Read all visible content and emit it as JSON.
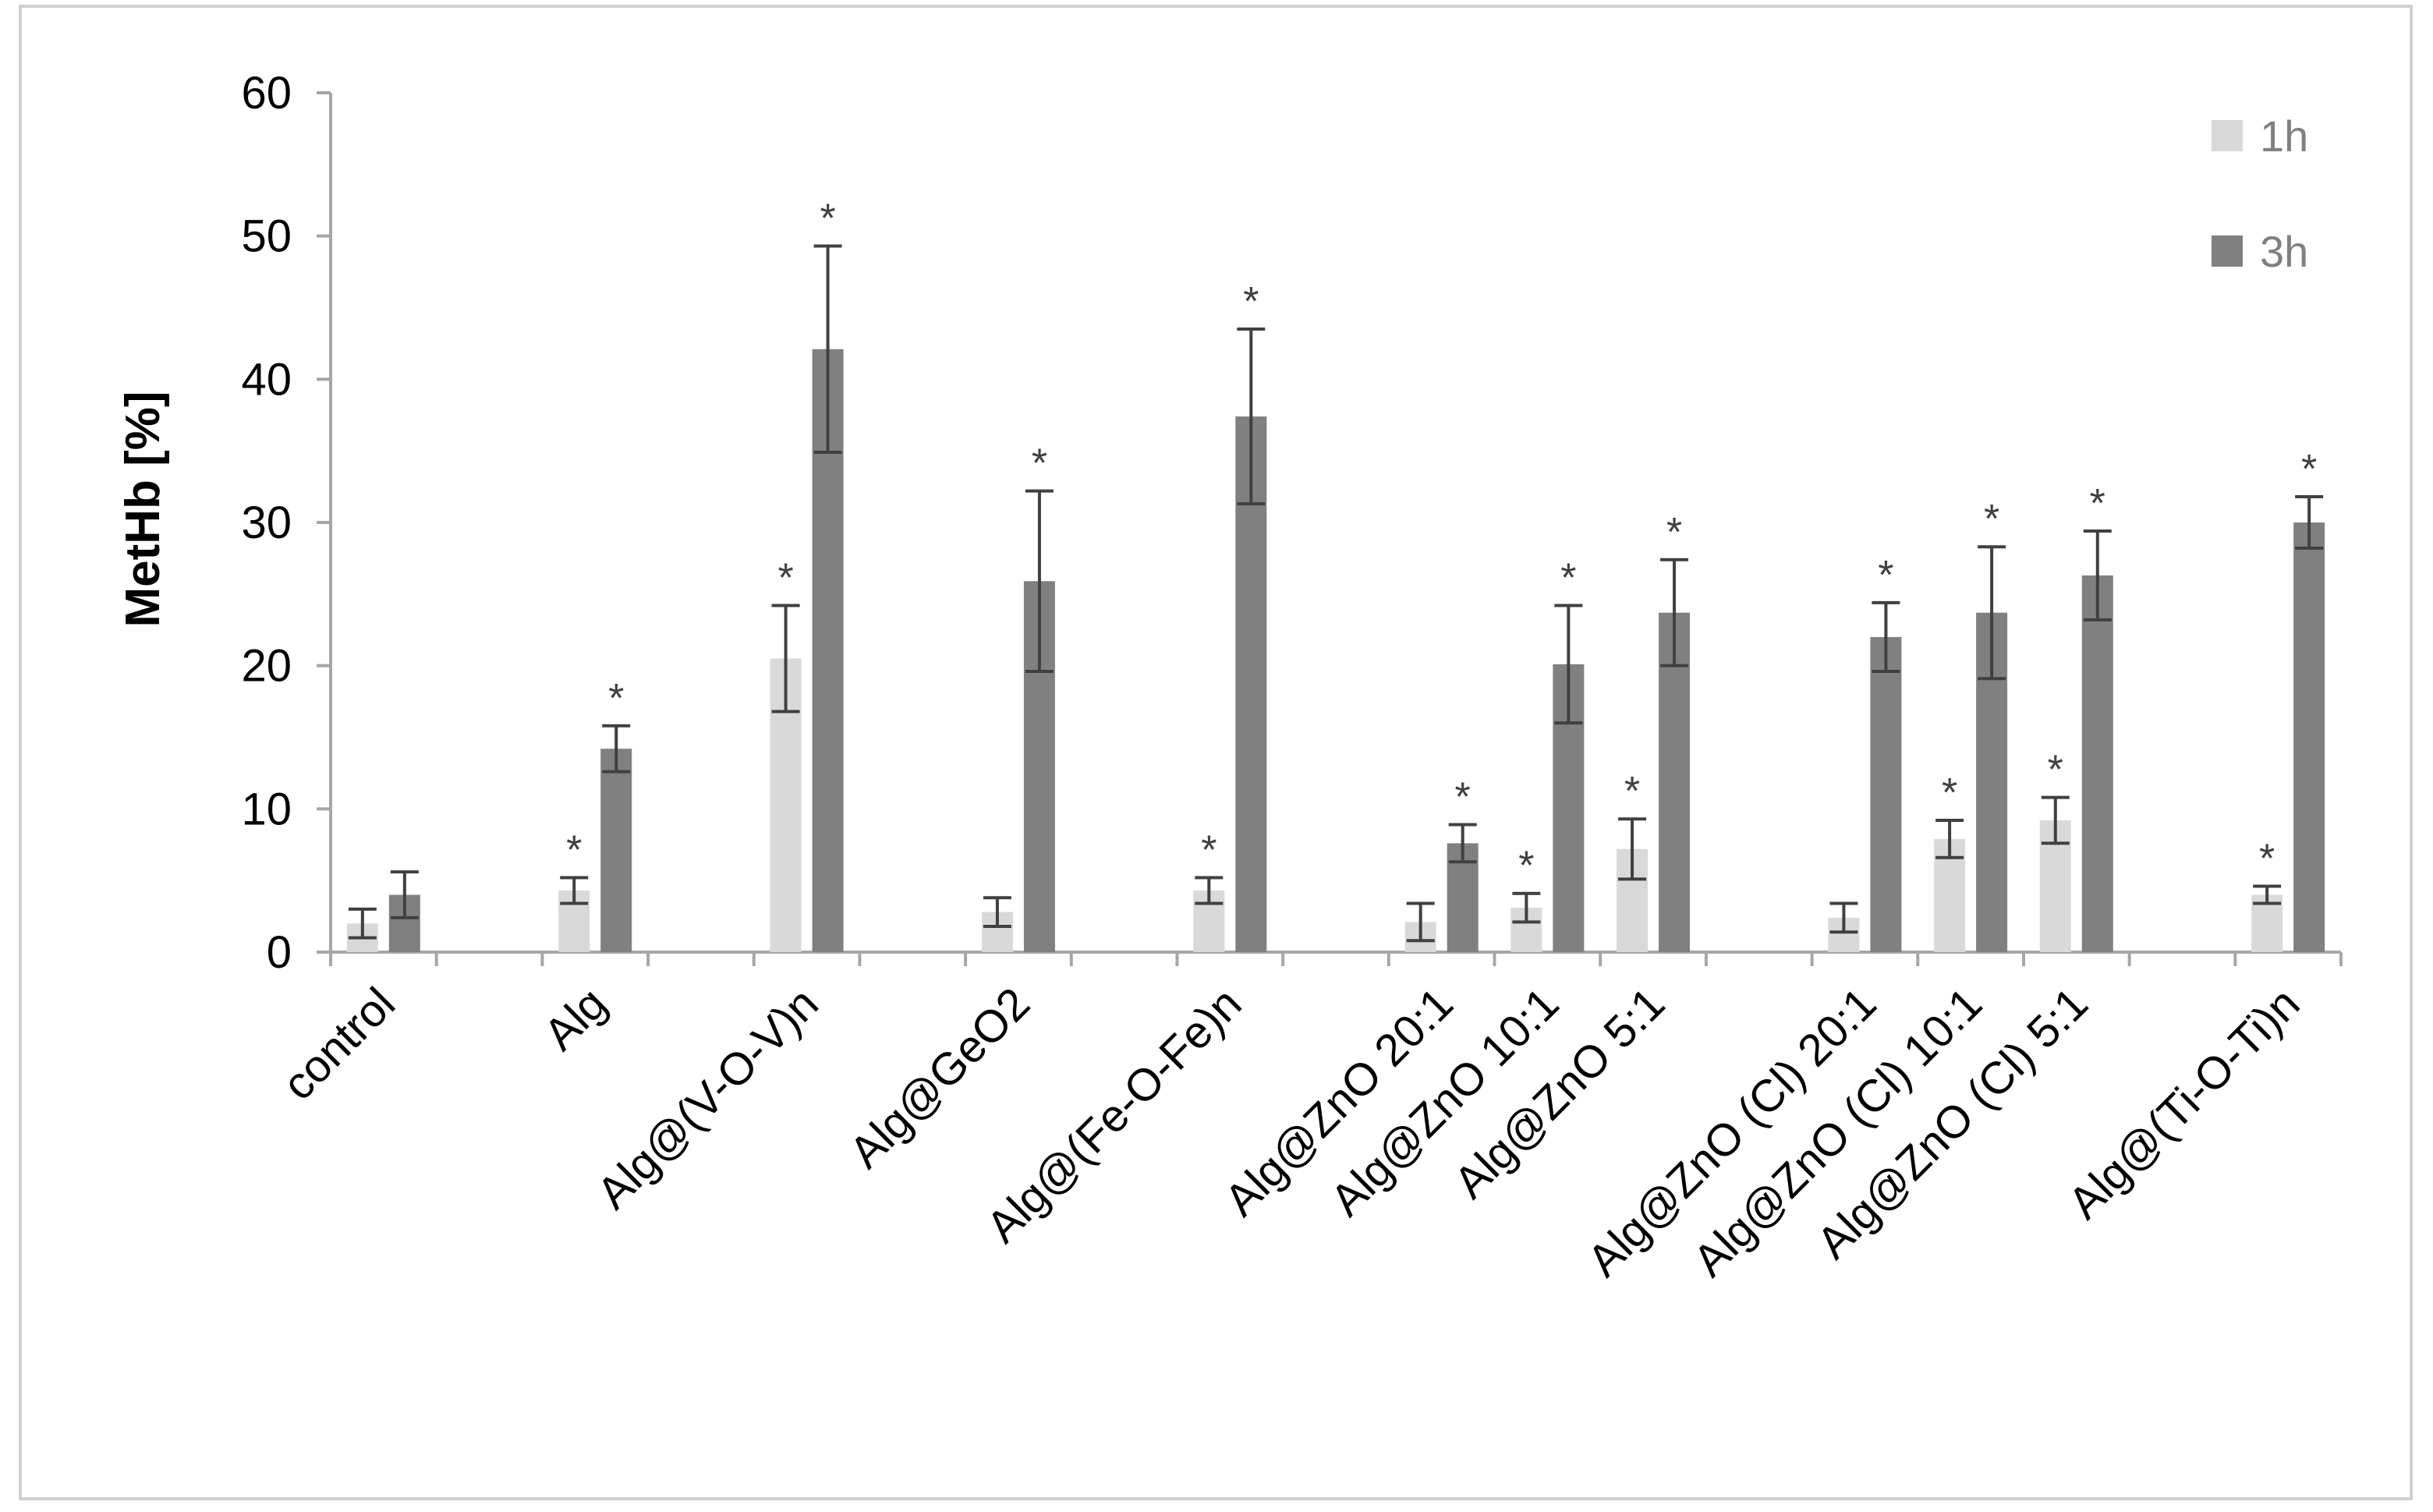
{
  "chart_data": {
    "type": "bar",
    "title": "",
    "xlabel": "",
    "ylabel": "MetHb [%]",
    "ylim": [
      0,
      60
    ],
    "yticks": [
      0,
      10,
      20,
      30,
      40,
      50,
      60
    ],
    "grid": false,
    "legend_position": "top-right",
    "groups": [
      [
        0
      ],
      [
        1
      ],
      [
        2
      ],
      [
        3
      ],
      [
        4
      ],
      [
        5,
        6,
        7
      ],
      [
        8,
        9,
        10
      ],
      [
        11
      ]
    ],
    "categories": [
      "control",
      "Alg",
      "Alg@(V-O-V)n",
      "Alg@GeO2",
      "Alg@(Fe-O-Fe)n",
      "Alg@ZnO 20:1",
      "Alg@ZnO 10:1",
      "Alg@ZnO 5:1",
      "Alg@ZnO (Cl)  20:1",
      "Alg@ZnO (Cl) 10:1",
      "Alg@ZnO (Cl) 5:1",
      "Alg@(Ti-O-Ti)n"
    ],
    "series": [
      {
        "name": "1h",
        "color": "#d9d9d9",
        "values": [
          2.0,
          4.3,
          20.5,
          2.8,
          4.3,
          2.1,
          3.1,
          7.2,
          2.4,
          7.9,
          9.2,
          4.0
        ],
        "errors": [
          1.0,
          0.9,
          3.7,
          1.0,
          0.9,
          1.3,
          1.0,
          2.1,
          1.0,
          1.3,
          1.6,
          0.6
        ],
        "significant": [
          false,
          true,
          true,
          false,
          true,
          false,
          true,
          true,
          false,
          true,
          true,
          true
        ]
      },
      {
        "name": "3h",
        "color": "#808080",
        "values": [
          4.0,
          14.2,
          42.1,
          25.9,
          37.4,
          7.6,
          20.1,
          23.7,
          22.0,
          23.7,
          26.3,
          30.0
        ],
        "errors": [
          1.6,
          1.6,
          7.2,
          6.3,
          6.1,
          1.3,
          4.1,
          3.7,
          2.4,
          4.6,
          3.1,
          1.8
        ],
        "significant": [
          false,
          true,
          true,
          true,
          true,
          true,
          true,
          true,
          true,
          true,
          true,
          true
        ]
      }
    ],
    "significance_marker": "*"
  }
}
